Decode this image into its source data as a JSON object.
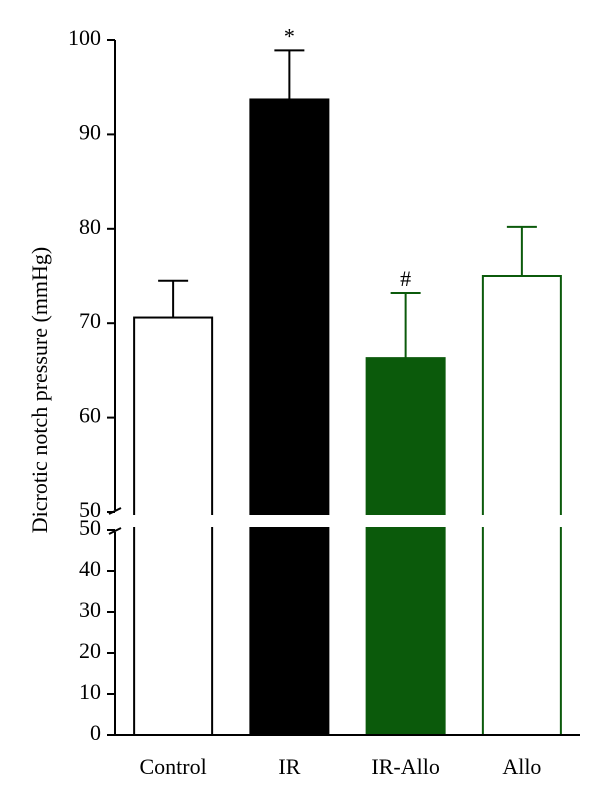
{
  "chart_data": {
    "type": "bar",
    "ylabel": "Dicrotic notch pressure (mmHg)",
    "categories": [
      "Control",
      "IR",
      "IR-Allo",
      "Allo"
    ],
    "values": [
      70.6,
      93.7,
      66.3,
      75.0
    ],
    "errors": [
      3.9,
      5.2,
      6.9,
      5.2
    ],
    "fill_colors": [
      "#ffffff",
      "#000000",
      "#0b5a0b",
      "#ffffff"
    ],
    "edge_colors": [
      "#000000",
      "#000000",
      "#0b5a0b",
      "#0b5a0b"
    ],
    "annotations": [
      null,
      "*",
      "#",
      null
    ],
    "axis_break": true,
    "ylim_lower": [
      0,
      50
    ],
    "yticks_lower": [
      0,
      10,
      20,
      30,
      40,
      50
    ],
    "ylim_upper": [
      50,
      100
    ],
    "yticks_upper": [
      50,
      60,
      70,
      80,
      90,
      100
    ]
  }
}
